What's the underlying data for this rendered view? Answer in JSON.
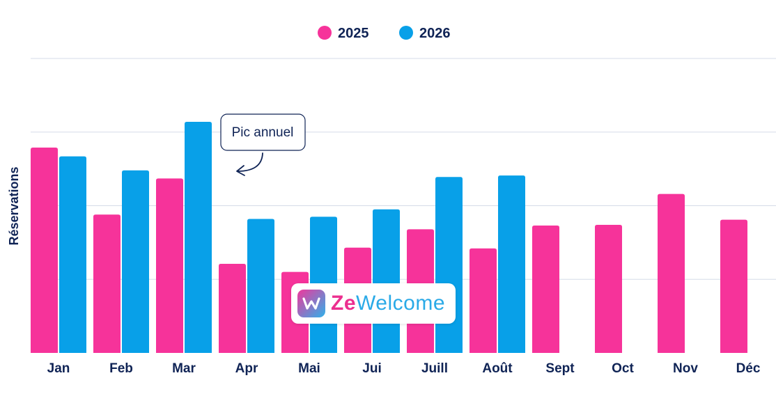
{
  "chart_data": {
    "type": "bar",
    "title": "",
    "xlabel": "",
    "ylabel": "Réservations",
    "ylim": [
      0,
      400
    ],
    "grid": true,
    "legend_position": "top-center",
    "categories": [
      "Jan",
      "Feb",
      "Mar",
      "Apr",
      "Mai",
      "Jui",
      "Juill",
      "Août",
      "Sept",
      "Oct",
      "Nov",
      "Déc"
    ],
    "series": [
      {
        "name": "2025",
        "color": "#f6339a",
        "values": [
          279,
          188,
          237,
          121,
          110,
          143,
          168,
          142,
          173,
          174,
          216,
          181
        ]
      },
      {
        "name": "2026",
        "color": "#08a0e8",
        "values": [
          267,
          248,
          314,
          182,
          185,
          195,
          239,
          241,
          null,
          null,
          null,
          null
        ]
      }
    ],
    "annotation": {
      "text": "Pic annuel",
      "category": "Mar",
      "series": "2026"
    }
  },
  "watermark": {
    "brand_part1": "Ze",
    "brand_part2": "Welcome",
    "logo_icon": "zewelcome-w-icon"
  },
  "colors": {
    "text": "#0f2355",
    "grid": "#d5dbe8"
  }
}
